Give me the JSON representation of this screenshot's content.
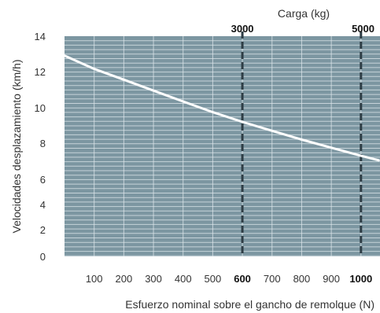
{
  "chart_data": {
    "type": "line",
    "ylabel": "Velocidades desplazamiento (km/h)",
    "xlabel": "Esfuerzo nominal sobre el gancho de remolque (N)",
    "top_axis_label": "Carga (kg)",
    "y_ticks": [
      "0",
      "2",
      "4",
      "6",
      "8",
      "10",
      "12",
      "14"
    ],
    "x_ticks": [
      "100",
      "200",
      "300",
      "400",
      "500",
      "600",
      "700",
      "800",
      "900",
      "1000"
    ],
    "x_bold_ticks": [
      "600",
      "1000"
    ],
    "top_ticks": [
      {
        "label": "3000",
        "x": 600
      },
      {
        "label": "5000",
        "x": 1000
      }
    ],
    "reference_lines_x": [
      600,
      1000
    ],
    "x": [
      0,
      100,
      200,
      300,
      400,
      500,
      600,
      700,
      800,
      900,
      1000,
      1060
    ],
    "series": [
      {
        "values": [
          12.9,
          12.15,
          11.55,
          10.95,
          10.35,
          9.75,
          9.2,
          8.7,
          8.2,
          7.75,
          7.3,
          7.05
        ]
      }
    ],
    "xlim": [
      0,
      1060
    ],
    "ylim_note": "non-uniform y axis",
    "colors": {
      "plot_bg": "#7c96a1",
      "grid": "#dfe8ec",
      "line": "#ffffff",
      "ref_line": "#2e3d45"
    }
  }
}
